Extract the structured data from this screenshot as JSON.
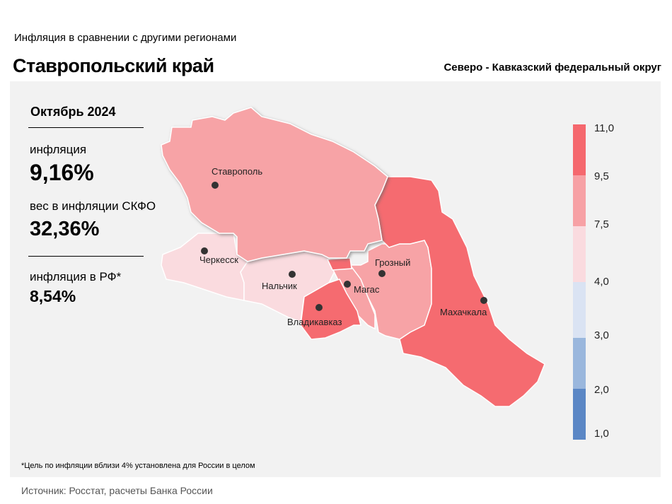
{
  "header": {
    "subtitle": "Инфляция  в сравнении  с другими  регионами",
    "title": "Ставропольский край",
    "district": "Северо - Кавказский федеральный округ"
  },
  "stats": {
    "period": "Октябрь 2024",
    "inflation_label": "инфляция",
    "inflation_value": "9,16%",
    "weight_label": "вес в инфляции  СКФО",
    "weight_value": "32,36%",
    "rf_label": "инфляция  в РФ*",
    "rf_value": "8,54%"
  },
  "legend": {
    "ticks": [
      "11,0",
      "9,5",
      "7,5",
      "4,0",
      "3,0",
      "2,0",
      "1,0"
    ],
    "colors": [
      "#f5686e",
      "#f7a1a5",
      "#fadbdf",
      "#dae3f3",
      "#9ab7dd",
      "#5b87c5"
    ]
  },
  "map": {
    "cities": [
      "Ставрополь",
      "Черкесск",
      "Нальчик",
      "Магас",
      "Владикавказ",
      "Грозный",
      "Махачкала"
    ],
    "region_colors": {
      "stavropol": "#f7a3a6",
      "dagestan": "#f56b70",
      "chechnya": "#f7a3a6",
      "ingushetia": "#f7a3a6",
      "north_ossetia": "#f56b70",
      "kbr": "#fadbdf",
      "kchr": "#fadbdf"
    }
  },
  "footnote": "*Цель по инфляции вблизи 4% установлена для России в целом",
  "source": "Источник: Росстат, расчеты Банка России"
}
